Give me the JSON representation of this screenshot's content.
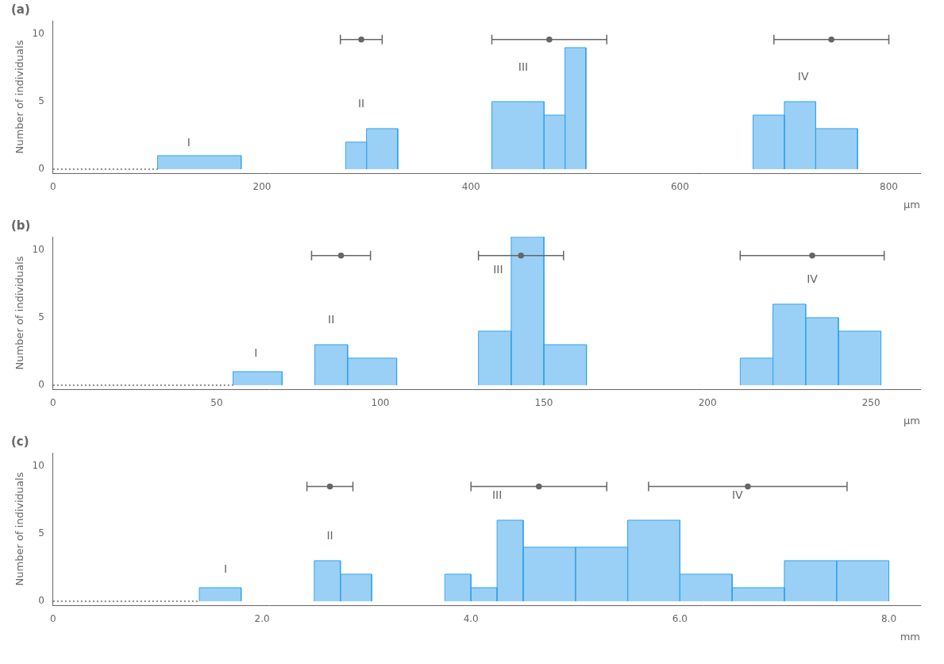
{
  "chart_data": [
    {
      "type": "bar",
      "title": "(a)",
      "xlabel": "μm",
      "ylabel": "Number of individuals",
      "x": [
        100,
        280,
        300,
        420,
        470,
        490,
        670,
        700,
        730
      ],
      "widths": [
        80,
        20,
        30,
        50,
        20,
        20,
        30,
        30,
        40
      ],
      "values": [
        1,
        2,
        3,
        5,
        4,
        9,
        4,
        5,
        3
      ],
      "color": "#36a2eb",
      "grid": false,
      "xlim": [
        0,
        830
      ],
      "xticks": [
        0,
        200,
        400,
        600,
        800
      ],
      "ylim": [
        -0.3,
        11
      ],
      "yticks": [
        0,
        5,
        10
      ],
      "annotations": [
        {
          "text": "I",
          "x": 130,
          "y": 1.9
        },
        {
          "text": "II",
          "x": 295,
          "y": 4.8
        },
        {
          "text": "III",
          "x": 450,
          "y": 7.5
        },
        {
          "text": "IV",
          "x": 718,
          "y": 6.8
        }
      ],
      "error_bars": [
        {
          "center": 295,
          "half_width": 20,
          "y": 9.6
        },
        {
          "center": 475,
          "half_width": 55,
          "y": 9.6
        },
        {
          "center": 745,
          "half_width": 55,
          "y": 9.6
        }
      ],
      "dotted_end": 100
    },
    {
      "type": "bar",
      "title": "(b)",
      "xlabel": "μm",
      "ylabel": "Number of individuals",
      "x": [
        55,
        80,
        90,
        130,
        140,
        150,
        210,
        220,
        230,
        240
      ],
      "widths": [
        15,
        10,
        15,
        10,
        10,
        13,
        10,
        10,
        10,
        13
      ],
      "values": [
        1,
        3,
        2,
        4,
        11,
        3,
        2,
        6,
        5,
        4
      ],
      "color": "#36a2eb",
      "grid": false,
      "xlim": [
        0,
        265
      ],
      "xticks": [
        0,
        50,
        100,
        150,
        200,
        250
      ],
      "ylim": [
        -0.3,
        11
      ],
      "yticks": [
        0,
        5,
        10
      ],
      "annotations": [
        {
          "text": "I",
          "x": 62,
          "y": 2.3
        },
        {
          "text": "II",
          "x": 85,
          "y": 4.8
        },
        {
          "text": "III",
          "x": 136,
          "y": 8.5
        },
        {
          "text": "IV",
          "x": 232,
          "y": 7.8
        }
      ],
      "error_bars": [
        {
          "center": 88,
          "half_width": 9,
          "y": 9.6
        },
        {
          "center": 143,
          "half_width": 13,
          "y": 9.6
        },
        {
          "center": 232,
          "half_width": 22,
          "y": 9.6
        }
      ],
      "dotted_end": 55
    },
    {
      "type": "bar",
      "title": "(c)",
      "xlabel": "mm",
      "ylabel": "Number of individuals",
      "x": [
        1.4,
        2.5,
        2.75,
        3.75,
        4.0,
        4.25,
        4.5,
        5.0,
        5.5,
        6.0,
        6.5,
        7.0,
        7.5
      ],
      "widths": [
        0.4,
        0.25,
        0.3,
        0.25,
        0.25,
        0.25,
        0.5,
        0.5,
        0.5,
        0.5,
        0.5,
        0.5,
        0.5
      ],
      "values": [
        1,
        3,
        2,
        2,
        1,
        6,
        4,
        4,
        6,
        2,
        1,
        3,
        3
      ],
      "color": "#36a2eb",
      "grid": false,
      "xlim": [
        0,
        8.3
      ],
      "xticks": [
        0,
        {
          "value": 2.0,
          "label": "2.0"
        },
        {
          "value": 4.0,
          "label": "4.0"
        },
        {
          "value": 6.0,
          "label": "6.0"
        },
        {
          "value": 8.0,
          "label": "8.0"
        }
      ],
      "ylim": [
        -0.3,
        11
      ],
      "yticks": [
        0,
        5,
        10
      ],
      "annotations": [
        {
          "text": "I",
          "x": 1.65,
          "y": 2.3
        },
        {
          "text": "II",
          "x": 2.65,
          "y": 4.8
        },
        {
          "text": "III",
          "x": 4.25,
          "y": 7.8
        },
        {
          "text": "IV",
          "x": 6.55,
          "y": 7.8
        }
      ],
      "error_bars": [
        {
          "center": 2.65,
          "half_width": 0.22,
          "y": 8.5
        },
        {
          "center": 4.65,
          "half_width": 0.65,
          "y": 8.5
        },
        {
          "center": 6.65,
          "half_width": 0.95,
          "y": 8.5
        }
      ],
      "dotted_end": 1.4
    }
  ]
}
